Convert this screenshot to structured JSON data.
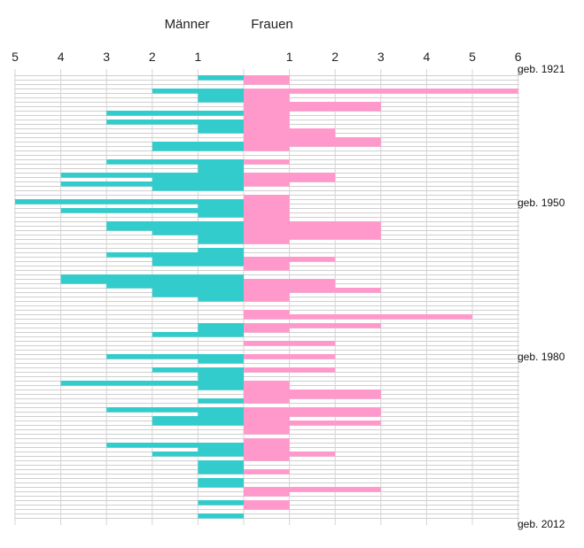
{
  "chart_data": {
    "type": "bar",
    "orientation": "horizontal-diverging",
    "series": [
      {
        "name": "Männer",
        "color": "#33cccc",
        "side": "left",
        "values": [
          1,
          0,
          0,
          2,
          1,
          1,
          0,
          0,
          3,
          0,
          3,
          1,
          1,
          0,
          0,
          2,
          2,
          0,
          0,
          3,
          1,
          1,
          4,
          2,
          4,
          2,
          0,
          0,
          5,
          1,
          4,
          1,
          0,
          3,
          3,
          2,
          1,
          1,
          0,
          1,
          3,
          2,
          2,
          0,
          0,
          4,
          4,
          3,
          2,
          2,
          1,
          0,
          0,
          0,
          0,
          0,
          1,
          1,
          2,
          0,
          0,
          0,
          0,
          3,
          1,
          0,
          2,
          1,
          1,
          4,
          1,
          0,
          0,
          1,
          0,
          3,
          1,
          2,
          2,
          0,
          0,
          0,
          0,
          3,
          1,
          2,
          0,
          1,
          1,
          1,
          0,
          1,
          1,
          0,
          0,
          0,
          1,
          0,
          0,
          1
        ]
      },
      {
        "name": "Frauen",
        "color": "#ff99cc",
        "side": "right",
        "values": [
          1,
          1,
          0,
          6,
          1,
          1,
          3,
          3,
          1,
          1,
          1,
          1,
          2,
          2,
          3,
          3,
          1,
          0,
          0,
          1,
          0,
          0,
          2,
          2,
          1,
          0,
          0,
          1,
          1,
          1,
          1,
          1,
          1,
          3,
          3,
          3,
          3,
          1,
          0,
          0,
          0,
          2,
          1,
          1,
          0,
          0,
          2,
          2,
          3,
          1,
          1,
          0,
          0,
          1,
          5,
          0,
          3,
          1,
          0,
          0,
          2,
          0,
          0,
          2,
          0,
          0,
          2,
          0,
          0,
          1,
          1,
          3,
          3,
          1,
          0,
          3,
          3,
          1,
          3,
          1,
          1,
          0,
          1,
          1,
          1,
          2,
          1,
          0,
          0,
          1,
          0,
          0,
          0,
          3,
          1,
          0,
          1,
          1,
          0,
          0
        ]
      }
    ],
    "rows": 100,
    "xlabel_left": "Männer",
    "xlabel_right": "Frauen",
    "ticks_left": [
      5,
      4,
      3,
      2,
      1
    ],
    "ticks_right": [
      1,
      2,
      3,
      4,
      5,
      6
    ],
    "row_labels": [
      "geb. 1921",
      "geb. 1950",
      "geb. 1980",
      "geb. 2012"
    ],
    "grid": true
  }
}
